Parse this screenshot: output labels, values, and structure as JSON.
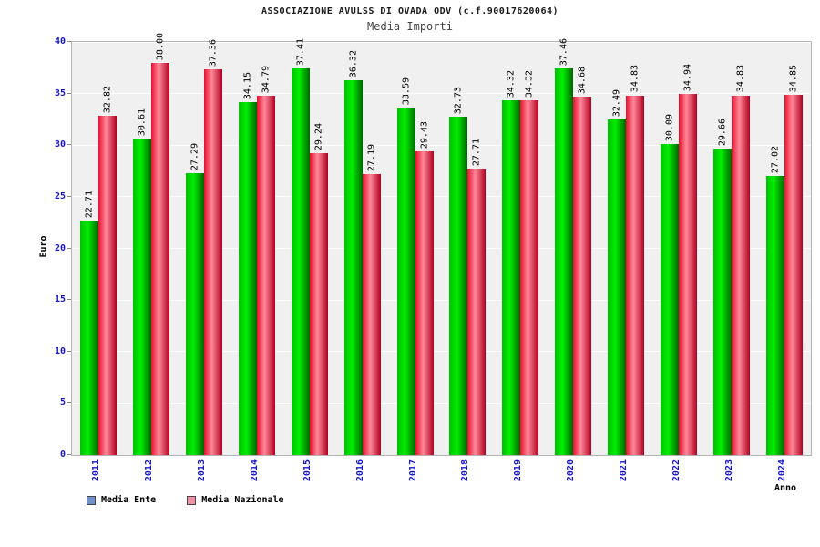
{
  "header": {
    "title": "ASSOCIAZIONE AVULSS DI OVADA ODV (c.f.90017620064)",
    "subtitle": "Media Importi"
  },
  "chart_data": {
    "type": "bar",
    "title": "ASSOCIAZIONE AVULSS DI OVADA ODV (c.f.90017620064)",
    "subtitle": "Media Importi",
    "categories": [
      "2011",
      "2012",
      "2013",
      "2014",
      "2015",
      "2016",
      "2017",
      "2018",
      "2019",
      "2020",
      "2021",
      "2022",
      "2023",
      "2024"
    ],
    "series": [
      {
        "name": "Media Ente",
        "legend_color": "#7090c8",
        "bar_gradient": [
          "#00c000",
          "#00ee00",
          "#006600"
        ],
        "values": [
          22.71,
          30.61,
          27.29,
          34.15,
          37.41,
          36.32,
          33.59,
          32.73,
          34.32,
          37.46,
          32.49,
          30.09,
          29.66,
          27.02
        ]
      },
      {
        "name": "Media Nazionale",
        "legend_color": "#f090a0",
        "bar_gradient": [
          "#e81030",
          "#ff8898",
          "#b00020"
        ],
        "values": [
          32.82,
          38.0,
          37.36,
          34.79,
          29.24,
          27.19,
          29.43,
          27.71,
          34.32,
          34.68,
          34.83,
          34.94,
          34.83,
          34.85
        ]
      }
    ],
    "xlabel": "Anno",
    "ylabel": "Euro",
    "ylim": [
      0,
      40
    ],
    "yticks": [
      0,
      5,
      10,
      15,
      20,
      25,
      30,
      35,
      40
    ],
    "grid": true,
    "legend_position": "bottom-left",
    "colors": {
      "axis_tick_label": "#1515cc",
      "value_label": "#000000",
      "plot_background": "#f0f0f0"
    }
  }
}
